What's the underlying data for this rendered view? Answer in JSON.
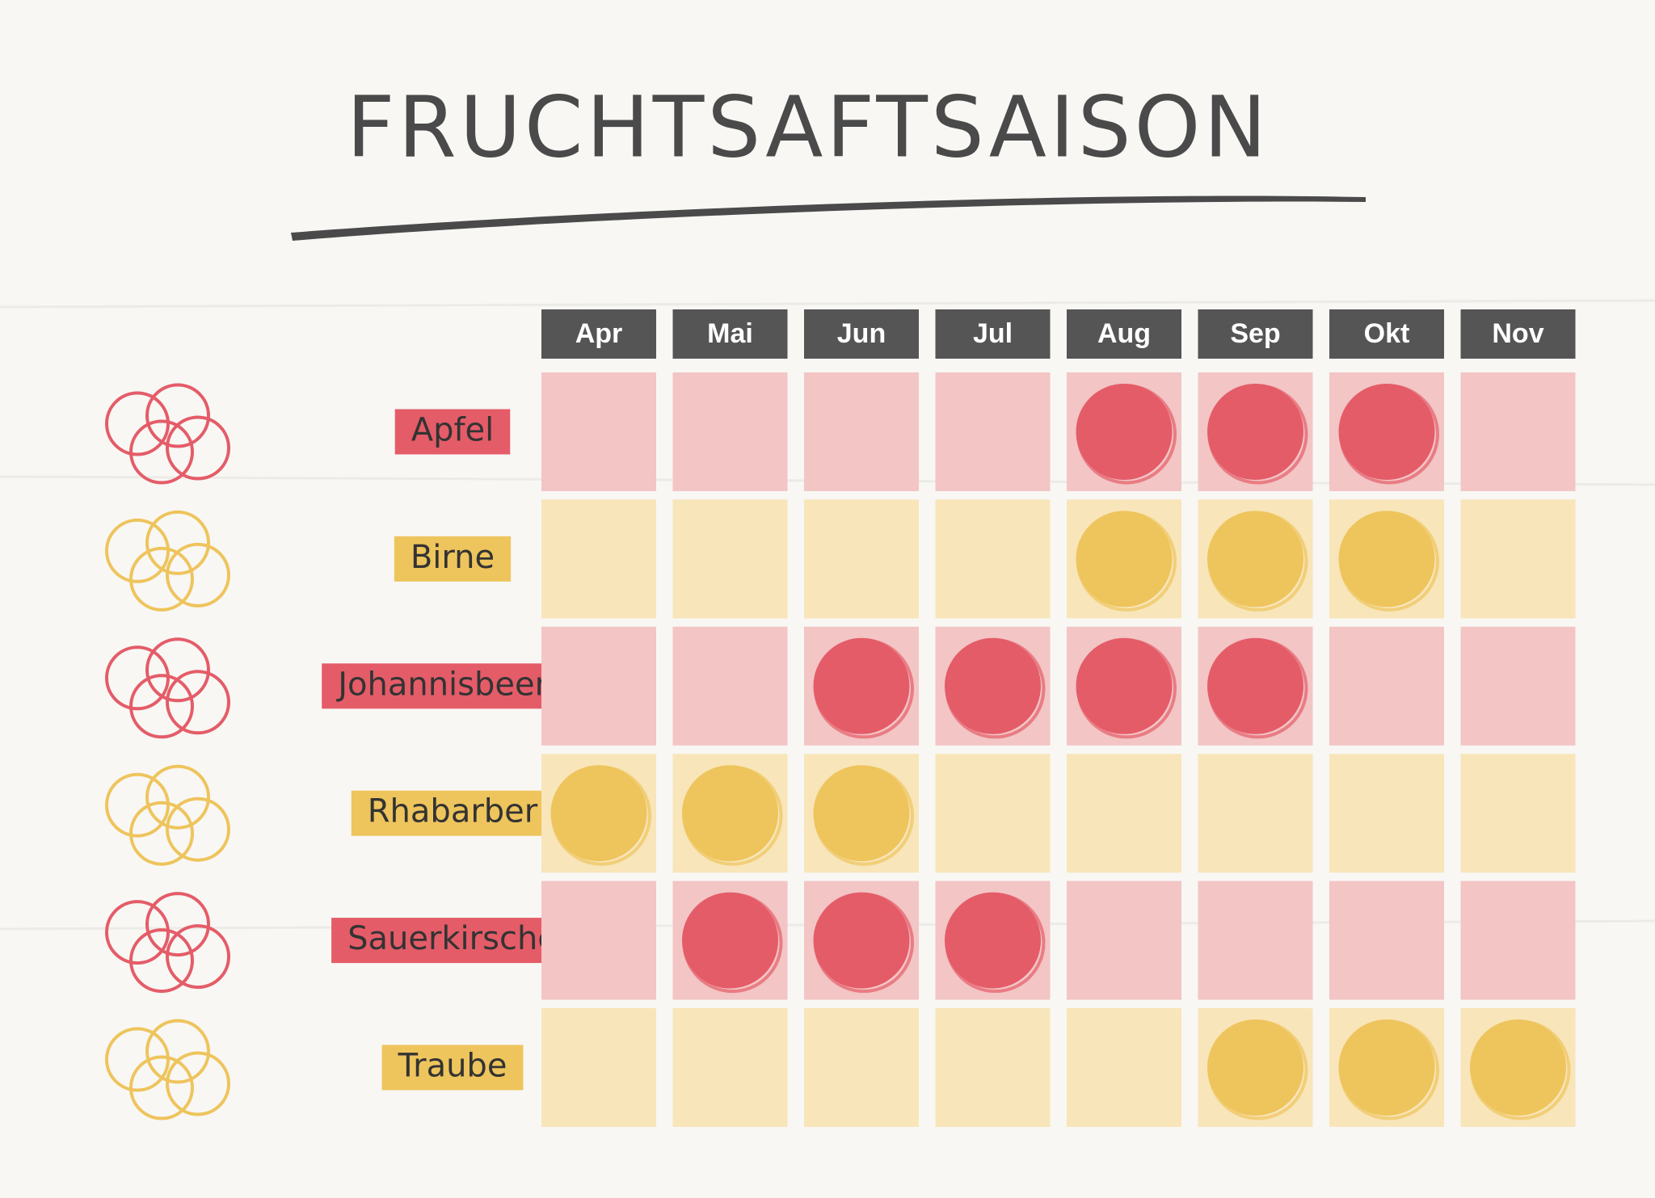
{
  "header": {
    "title": "FRUCHTSAFTSAISON"
  },
  "table": {
    "months": [
      "Apr",
      "Mai",
      "Jun",
      "Jul",
      "Aug",
      "Sep",
      "Okt",
      "Nov"
    ],
    "rows": [
      {
        "label": "Apfel",
        "color": "#e45c68",
        "cell_color": "#f3c5c5",
        "in_season": [
          false,
          false,
          false,
          false,
          true,
          true,
          true,
          false
        ]
      },
      {
        "label": "Birne",
        "color": "#eec45c",
        "cell_color": "#f8e5b9",
        "in_season": [
          false,
          false,
          false,
          false,
          true,
          true,
          true,
          false
        ]
      },
      {
        "label": "Johannisbeere",
        "color": "#e45c68",
        "cell_color": "#f3c5c5",
        "in_season": [
          false,
          false,
          true,
          true,
          true,
          true,
          false,
          false
        ]
      },
      {
        "label": "Rhabarber",
        "color": "#eec45c",
        "cell_color": "#f8e5b9",
        "in_season": [
          true,
          true,
          true,
          false,
          false,
          false,
          false,
          false
        ]
      },
      {
        "label": "Sauerkirsche",
        "color": "#e45c68",
        "cell_color": "#f3c5c5",
        "in_season": [
          false,
          true,
          true,
          true,
          false,
          false,
          false,
          false
        ]
      },
      {
        "label": "Traube",
        "color": "#eec45c",
        "cell_color": "#f8e5b9",
        "in_season": [
          false,
          false,
          false,
          false,
          false,
          true,
          true,
          true
        ]
      }
    ]
  }
}
